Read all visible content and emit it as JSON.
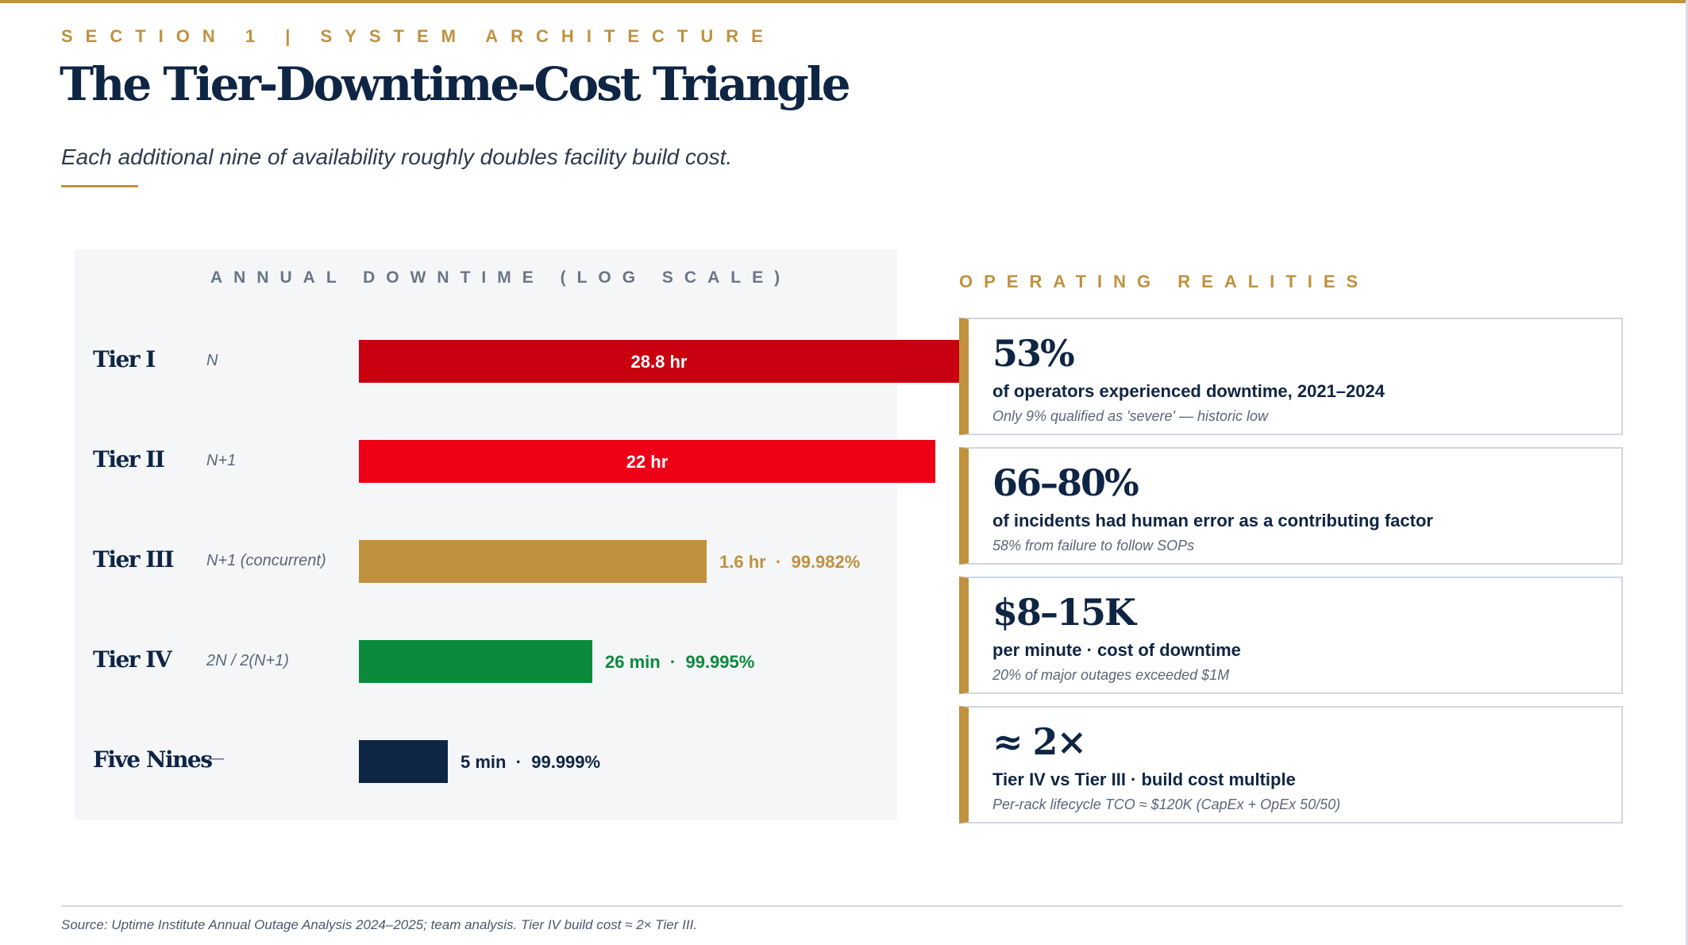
{
  "header": {
    "eyebrow": "SECTION 1   |   SYSTEM ARCHITECTURE",
    "title": "The Tier-Downtime-Cost Triangle",
    "subtitle": "Each additional nine of availability roughly doubles facility build cost."
  },
  "colors": {
    "gold": "#c0913f",
    "navy": "#0f2544",
    "tier1_red": "#c8000f",
    "tier2_red": "#ee0016",
    "tier3_gold": "#c0913f",
    "tier4_green": "#0a8a3a",
    "five_nines_navy": "#0f2544"
  },
  "chart_data": {
    "type": "bar",
    "orientation": "horizontal",
    "title": "ANNUAL DOWNTIME (LOG SCALE)",
    "scale": "log",
    "unit": "minutes",
    "categories": [
      "Tier I",
      "Tier II",
      "Tier III",
      "Tier IV",
      "Five Nines"
    ],
    "configurations": [
      "N",
      "N+1",
      "N+1 (concurrent)",
      "2N / 2(N+1)",
      "—"
    ],
    "values": [
      1728,
      1320,
      96,
      26,
      5
    ],
    "value_labels": [
      "28.8 hr",
      "22 hr",
      "1.6 hr",
      "26 min",
      "5 min"
    ],
    "availability_labels": [
      "",
      "",
      "99.982%",
      "99.995%",
      "99.999%"
    ],
    "series_colors": [
      "#c8000f",
      "#ee0016",
      "#c0913f",
      "#0a8a3a",
      "#0f2544"
    ],
    "label_inside": [
      true,
      true,
      false,
      false,
      false
    ],
    "separator": "·",
    "grid": false,
    "legend": "none"
  },
  "realities": {
    "title": "OPERATING REALITIES",
    "cards": [
      {
        "value": "53%",
        "description": "of operators experienced downtime, 2021–2024",
        "note": "Only 9% qualified as 'severe' — historic low"
      },
      {
        "value": "66–80%",
        "description": "of incidents had human error as a contributing factor",
        "note": "58% from failure to follow SOPs"
      },
      {
        "value": "$8–15K",
        "description": "per minute  ·  cost of downtime",
        "note": "20% of major outages exceeded $1M"
      },
      {
        "value": "≈ 2×",
        "description": "Tier IV vs Tier III  ·  build cost multiple",
        "note": "Per-rack lifecycle TCO ≈ $120K (CapEx + OpEx 50/50)"
      }
    ]
  },
  "footer": {
    "source": "Source: Uptime Institute Annual Outage Analysis 2024–2025; team analysis. Tier IV build cost ≈ 2× Tier III."
  }
}
